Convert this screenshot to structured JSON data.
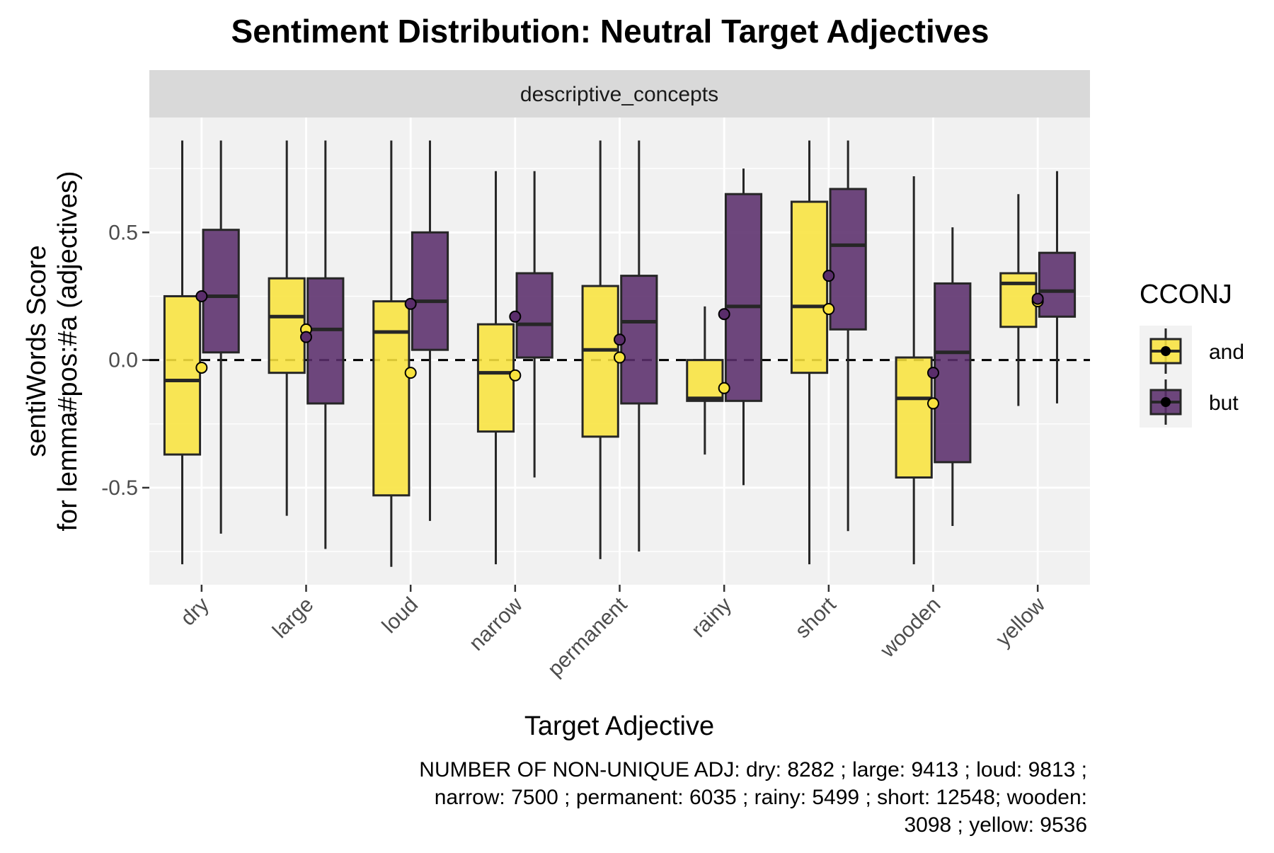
{
  "chart_data": {
    "type": "boxplot",
    "title": "Sentiment Distribution: Neutral Target Adjectives",
    "facet_label": "descriptive_concepts",
    "xlabel": "Target Adjective",
    "ylabel_line1": "sentiWords Score",
    "ylabel_line2": "for lemma#pos:#a (adjectives)",
    "ylim": [
      -0.88,
      0.95
    ],
    "y_ticks": [
      -0.5,
      0.0,
      0.5
    ],
    "y_tick_labels": [
      "-0.5",
      "0.0",
      "0.5"
    ],
    "y_minor_ticks": [
      -0.75,
      -0.25,
      0.25,
      0.75
    ],
    "reference_line": 0.0,
    "categories": [
      "dry",
      "large",
      "loud",
      "narrow",
      "permanent",
      "rainy",
      "short",
      "wooden",
      "yellow"
    ],
    "legend": {
      "title": "CCONJ",
      "position": "right",
      "entries": [
        {
          "label": "and",
          "color": "#F8E33E"
        },
        {
          "label": "but",
          "color": "#5A2D6B"
        }
      ]
    },
    "series": [
      {
        "name": "and",
        "color": "#F8E33E",
        "boxes": [
          {
            "whisker_low": -0.8,
            "q1": -0.37,
            "median": -0.08,
            "q3": 0.25,
            "whisker_high": 0.86,
            "mean": -0.03
          },
          {
            "whisker_low": -0.61,
            "q1": -0.05,
            "median": 0.17,
            "q3": 0.32,
            "whisker_high": 0.86,
            "mean": 0.12
          },
          {
            "whisker_low": -0.81,
            "q1": -0.53,
            "median": 0.11,
            "q3": 0.23,
            "whisker_high": 0.86,
            "mean": -0.05
          },
          {
            "whisker_low": -0.8,
            "q1": -0.28,
            "median": -0.05,
            "q3": 0.14,
            "whisker_high": 0.74,
            "mean": -0.06
          },
          {
            "whisker_low": -0.78,
            "q1": -0.3,
            "median": 0.04,
            "q3": 0.29,
            "whisker_high": 0.86,
            "mean": 0.01
          },
          {
            "whisker_low": -0.37,
            "q1": -0.16,
            "median": -0.15,
            "q3": 0.0,
            "whisker_high": 0.21,
            "mean": -0.11
          },
          {
            "whisker_low": -0.8,
            "q1": -0.05,
            "median": 0.21,
            "q3": 0.62,
            "whisker_high": 0.86,
            "mean": 0.2
          },
          {
            "whisker_low": -0.8,
            "q1": -0.46,
            "median": -0.15,
            "q3": 0.01,
            "whisker_high": 0.72,
            "mean": -0.17
          },
          {
            "whisker_low": -0.18,
            "q1": 0.13,
            "median": 0.3,
            "q3": 0.34,
            "whisker_high": 0.65,
            "mean": 0.23
          }
        ]
      },
      {
        "name": "but",
        "color": "#5A2D6B",
        "boxes": [
          {
            "whisker_low": -0.68,
            "q1": 0.03,
            "median": 0.25,
            "q3": 0.51,
            "whisker_high": 0.86,
            "mean": 0.25
          },
          {
            "whisker_low": -0.74,
            "q1": -0.17,
            "median": 0.12,
            "q3": 0.32,
            "whisker_high": 0.86,
            "mean": 0.09
          },
          {
            "whisker_low": -0.63,
            "q1": 0.04,
            "median": 0.23,
            "q3": 0.5,
            "whisker_high": 0.86,
            "mean": 0.22
          },
          {
            "whisker_low": -0.46,
            "q1": 0.01,
            "median": 0.14,
            "q3": 0.34,
            "whisker_high": 0.74,
            "mean": 0.17
          },
          {
            "whisker_low": -0.75,
            "q1": -0.17,
            "median": 0.15,
            "q3": 0.33,
            "whisker_high": 0.86,
            "mean": 0.08
          },
          {
            "whisker_low": -0.49,
            "q1": -0.16,
            "median": 0.21,
            "q3": 0.65,
            "whisker_high": 0.75,
            "mean": 0.18
          },
          {
            "whisker_low": -0.67,
            "q1": 0.12,
            "median": 0.45,
            "q3": 0.67,
            "whisker_high": 0.86,
            "mean": 0.33
          },
          {
            "whisker_low": -0.65,
            "q1": -0.4,
            "median": 0.03,
            "q3": 0.3,
            "whisker_high": 0.52,
            "mean": -0.05
          },
          {
            "whisker_low": -0.17,
            "q1": 0.17,
            "median": 0.27,
            "q3": 0.42,
            "whisker_high": 0.74,
            "mean": 0.24
          }
        ]
      }
    ],
    "caption_lines": [
      "NUMBER OF NON-UNIQUE ADJ: dry: 8282 ; large: 9413 ; loud: 9813 ;",
      "narrow: 7500 ; permanent: 6035 ; rainy: 5499 ; short: 12548; wooden:",
      "3098 ; yellow: 9536"
    ]
  }
}
